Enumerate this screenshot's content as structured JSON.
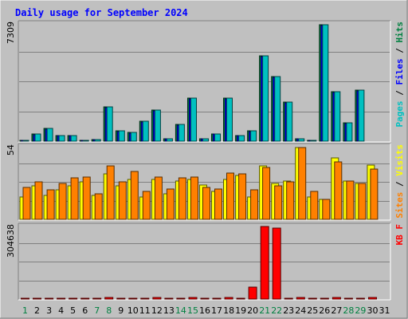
{
  "chart_data": {
    "type": "bar",
    "title": "Daily usage for September 2024",
    "days": [
      "1",
      "2",
      "3",
      "4",
      "5",
      "6",
      "7",
      "8",
      "9",
      "10",
      "11",
      "12",
      "13",
      "14",
      "15",
      "16",
      "17",
      "18",
      "19",
      "20",
      "21",
      "22",
      "23",
      "24",
      "25",
      "26",
      "27",
      "28",
      "29",
      "30",
      "31"
    ],
    "weekend_days": [
      1,
      7,
      8,
      14,
      15,
      21,
      22,
      28,
      29
    ],
    "panels": [
      {
        "id": "hits",
        "max_label": "7309",
        "ymax": 7309,
        "legend": [
          {
            "text": "Pages",
            "color": "#00c0c0"
          },
          {
            "text": " / ",
            "color": "#000000"
          },
          {
            "text": "Files",
            "color": "#0000ff"
          },
          {
            "text": " / ",
            "color": "#000000"
          },
          {
            "text": "Hits",
            "color": "#008040"
          }
        ],
        "series": [
          {
            "name": "Hits",
            "color": "#008040",
            "values": [
              60,
              450,
              800,
              350,
              350,
              60,
              120,
              2150,
              650,
              550,
              1250,
              1950,
              170,
              1050,
              2700,
              150,
              450,
              2700,
              350,
              650,
              5350,
              4050,
              2450,
              170,
              60,
              7300,
              3100,
              1150,
              3200,
              0,
              0
            ]
          },
          {
            "name": "Files",
            "color": "#0000ff",
            "values": [
              50,
              420,
              760,
              330,
              330,
              50,
              110,
              2080,
              620,
              520,
              1200,
              1880,
              160,
              1000,
              2650,
              140,
              430,
              2650,
              330,
              620,
              5300,
              4000,
              2420,
              160,
              50,
              7250,
              3050,
              1120,
              3150,
              0,
              0
            ]
          },
          {
            "name": "Pages",
            "color": "#00c0c0",
            "values": [
              60,
              450,
              800,
              350,
              350,
              60,
              120,
              2150,
              650,
              550,
              1250,
              1950,
              170,
              1050,
              2700,
              150,
              450,
              2700,
              350,
              650,
              5350,
              4050,
              2450,
              170,
              60,
              7300,
              3100,
              1150,
              3200,
              0,
              0
            ]
          }
        ]
      },
      {
        "id": "visits",
        "max_label": "54",
        "ymax": 54,
        "legend": [
          {
            "text": "Sites",
            "color": "#ff8000"
          },
          {
            "text": " / ",
            "color": "#000000"
          },
          {
            "text": "Visits",
            "color": "#ffff00"
          }
        ],
        "series": [
          {
            "name": "Visits",
            "color": "#ffff00",
            "values": [
              17,
              25,
              18,
              22,
              25,
              28,
              18,
              34,
              25,
              30,
              17,
              30,
              19,
              29,
              30,
              26,
              21,
              30,
              33,
              17,
              40,
              27,
              29,
              54,
              17,
              15,
              46,
              29,
              27,
              41,
              0
            ]
          },
          {
            "name": "Sites",
            "color": "#ff8000",
            "values": [
              24,
              28,
              22,
              27,
              31,
              32,
              19,
              40,
              28,
              36,
              21,
              32,
              23,
              31,
              32,
              24,
              23,
              35,
              34,
              22,
              39,
              25,
              28,
              54,
              21,
              15,
              43,
              29,
              27,
              38,
              0
            ]
          }
        ]
      },
      {
        "id": "kbytes",
        "max_label": "304638",
        "ymax": 304638,
        "legend": [
          {
            "text": "KB F",
            "color": "#ff0000"
          }
        ],
        "series": [
          {
            "name": "KB F",
            "color": "#ff0000",
            "values": [
              2500,
              2500,
              2500,
              2500,
              2500,
              2500,
              2500,
              6000,
              2500,
              2500,
              2500,
              6000,
              2500,
              2500,
              6000,
              2500,
              2500,
              6000,
              2500,
              52000,
              307000,
              302000,
              2500,
              6000,
              2500,
              2500,
              6000,
              2500,
              2500,
              6000,
              0
            ]
          }
        ]
      }
    ]
  }
}
